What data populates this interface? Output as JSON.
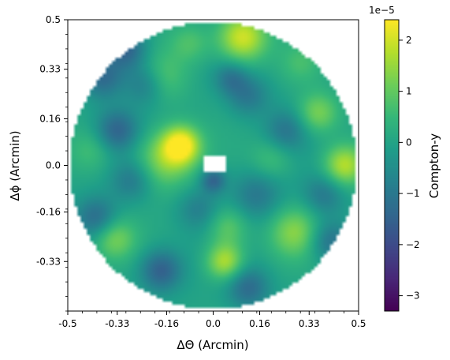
{
  "chart_data": {
    "type": "heatmap",
    "xlabel": "ΔΘ (Arcmin)",
    "ylabel": "Δϕ (Arcmin)",
    "xlim": [
      -0.5,
      0.5
    ],
    "ylim": [
      -0.5,
      0.5
    ],
    "x_ticks": [
      -0.5,
      -0.33,
      -0.16,
      0.0,
      0.16,
      0.33,
      0.5
    ],
    "x_tick_labels": [
      "-0.5",
      "-0.33",
      "-0.16",
      "0.0",
      "0.16",
      "0.33",
      "0.5"
    ],
    "y_ticks": [
      0.5,
      0.33,
      0.16,
      0.0,
      -0.16,
      -0.33
    ],
    "y_tick_labels": [
      "0.5",
      "0.33",
      "0.16",
      "0.0",
      "-0.16",
      "-0.33"
    ],
    "colorbar": {
      "label": "Compton-y",
      "multiplier_label": "1e−5",
      "range": [
        -3.3,
        2.4
      ],
      "ticks": [
        2,
        1,
        0,
        -1,
        -2,
        -3
      ],
      "tick_labels": [
        "2",
        "1",
        "0",
        "−1",
        "−2",
        "−3"
      ],
      "colormap": "viridis"
    },
    "field_shape": "circle",
    "field_radius_arcmin": 0.5,
    "masked_center": true,
    "blobs": [
      {
        "x": -0.11,
        "y": 0.07,
        "amp": 2.3,
        "sigma": 0.045
      },
      {
        "x": -0.17,
        "y": 0.02,
        "amp": 1.4,
        "sigma": 0.07
      },
      {
        "x": 0.1,
        "y": 0.44,
        "amp": 2.1,
        "sigma": 0.06
      },
      {
        "x": -0.08,
        "y": 0.42,
        "amp": 0.8,
        "sigma": 0.05
      },
      {
        "x": 0.45,
        "y": 0.0,
        "amp": 1.8,
        "sigma": 0.05
      },
      {
        "x": 0.36,
        "y": 0.18,
        "amp": 1.3,
        "sigma": 0.05
      },
      {
        "x": 0.04,
        "y": -0.33,
        "amp": 1.8,
        "sigma": 0.045
      },
      {
        "x": 0.05,
        "y": -0.21,
        "amp": 1.0,
        "sigma": 0.05
      },
      {
        "x": -0.34,
        "y": -0.25,
        "amp": 1.2,
        "sigma": 0.05
      },
      {
        "x": 0.28,
        "y": -0.23,
        "amp": 1.3,
        "sigma": 0.06
      },
      {
        "x": -0.18,
        "y": 0.3,
        "amp": 1.0,
        "sigma": 0.06
      },
      {
        "x": -0.42,
        "y": 0.05,
        "amp": 0.6,
        "sigma": 0.05
      },
      {
        "x": 0.2,
        "y": 0.02,
        "amp": 0.7,
        "sigma": 0.05
      },
      {
        "x": 0.3,
        "y": 0.35,
        "amp": 0.6,
        "sigma": 0.05
      },
      {
        "x": -0.3,
        "y": 0.4,
        "amp": -1.6,
        "sigma": 0.05
      },
      {
        "x": -0.23,
        "y": 0.28,
        "amp": -1.2,
        "sigma": 0.05
      },
      {
        "x": -0.38,
        "y": 0.3,
        "amp": -1.3,
        "sigma": 0.05
      },
      {
        "x": -0.33,
        "y": 0.12,
        "amp": -1.4,
        "sigma": 0.05
      },
      {
        "x": 0.12,
        "y": 0.24,
        "amp": -1.0,
        "sigma": 0.05
      },
      {
        "x": 0.06,
        "y": 0.3,
        "amp": -1.0,
        "sigma": 0.04
      },
      {
        "x": 0.25,
        "y": 0.12,
        "amp": -1.0,
        "sigma": 0.05
      },
      {
        "x": -0.18,
        "y": -0.36,
        "amp": -1.6,
        "sigma": 0.05
      },
      {
        "x": 0.12,
        "y": -0.42,
        "amp": -1.3,
        "sigma": 0.05
      },
      {
        "x": -0.4,
        "y": -0.18,
        "amp": -1.3,
        "sigma": 0.05
      },
      {
        "x": -0.28,
        "y": -0.05,
        "amp": -1.0,
        "sigma": 0.05
      },
      {
        "x": 0.15,
        "y": -0.1,
        "amp": -1.0,
        "sigma": 0.06
      },
      {
        "x": 0.4,
        "y": -0.26,
        "amp": -1.2,
        "sigma": 0.05
      },
      {
        "x": 0.38,
        "y": -0.1,
        "amp": -1.0,
        "sigma": 0.05
      },
      {
        "x": -0.05,
        "y": -0.15,
        "amp": -0.8,
        "sigma": 0.05
      },
      {
        "x": 0.0,
        "y": -0.05,
        "amp": -1.5,
        "sigma": 0.03
      }
    ]
  }
}
